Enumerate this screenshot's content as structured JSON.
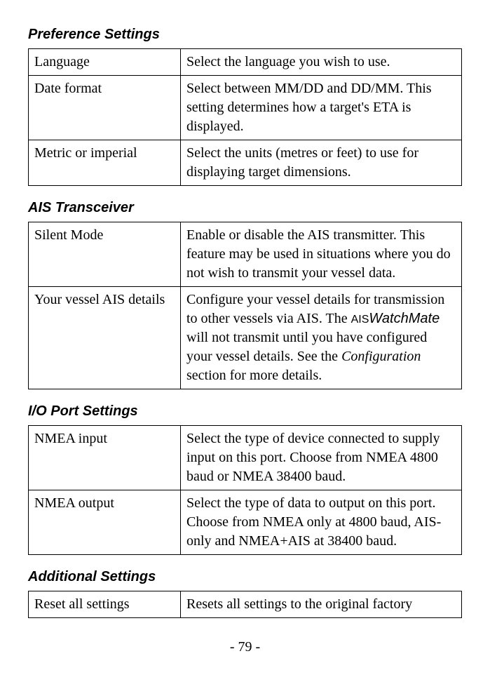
{
  "sections": [
    {
      "heading": "Preference Settings",
      "rows": [
        {
          "label": "Language",
          "desc": "Select the language you wish to use."
        },
        {
          "label": "Date format",
          "desc": "Select between MM/DD and DD/MM. This setting determines how a target's ETA is displayed."
        },
        {
          "label": "Metric or imperial",
          "desc": "Select the units (metres or feet) to use for displaying target dimensions."
        }
      ]
    },
    {
      "heading": "AIS Transceiver",
      "rows": [
        {
          "label": "Silent Mode",
          "desc": "Enable or disable the AIS transmitter. This feature may be used in situations where you do not wish to transmit your vessel data."
        },
        {
          "label": "Your vessel AIS details",
          "desc_parts": {
            "pre": "Configure your vessel details for transmission to other vessels via AIS. The ",
            "ais": "AIS",
            "wm": "WatchMate",
            "mid": " will not transmit until you have configured your vessel details. See the ",
            "cfg": "Configuration",
            "post": " section for more details."
          }
        }
      ]
    },
    {
      "heading": "I/O Port Settings",
      "rows": [
        {
          "label": "NMEA input",
          "desc": "Select the type of device connected to supply input on this port. Choose from NMEA 4800 baud or NMEA 38400 baud."
        },
        {
          "label": "NMEA output",
          "desc": "Select the type of data to output on this port. Choose from NMEA only at 4800 baud, AIS-only and NMEA+AIS at 38400 baud."
        }
      ]
    },
    {
      "heading": "Additional Settings",
      "rows": [
        {
          "label": "Reset all settings",
          "desc": "Resets all settings to the original factory"
        }
      ]
    }
  ],
  "page_number": "- 79 -"
}
